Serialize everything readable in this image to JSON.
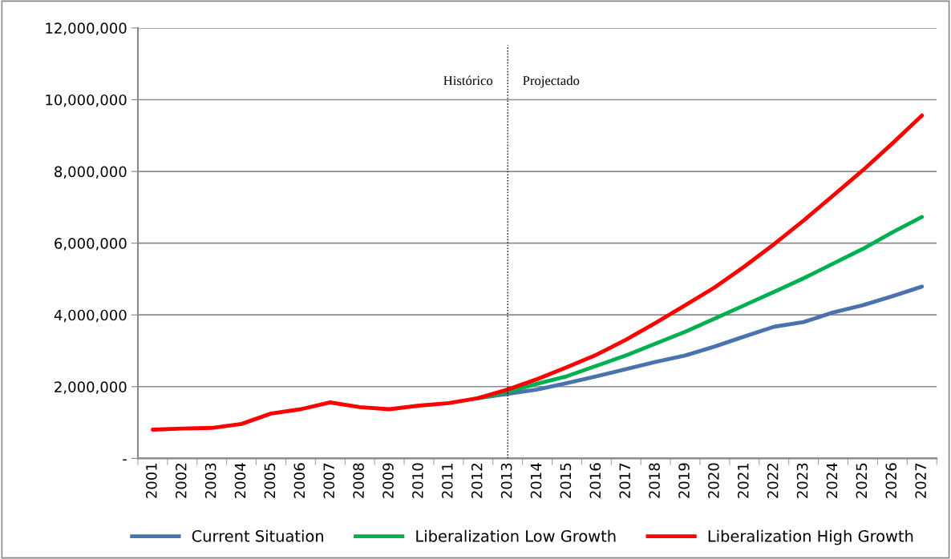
{
  "chart_data": {
    "type": "line",
    "categories": [
      "2001",
      "2002",
      "2003",
      "2004",
      "2005",
      "2006",
      "2007",
      "2008",
      "2009",
      "2010",
      "2011",
      "2012",
      "2013",
      "2014",
      "2015",
      "2016",
      "2017",
      "2018",
      "2019",
      "2020",
      "2021",
      "2022",
      "2023",
      "2024",
      "2025",
      "2026",
      "2027"
    ],
    "series": [
      {
        "name": "Current Situation",
        "color": "#4a73ad",
        "values": [
          null,
          null,
          null,
          null,
          null,
          null,
          null,
          null,
          null,
          null,
          null,
          1680000.0,
          1800000.0,
          1920000.0,
          2100000.0,
          2290000.0,
          2490000.0,
          2690000.0,
          2870000.0,
          3120000.0,
          3400000.0,
          3670000.0,
          3800000.0,
          4070000.0,
          4270000.0,
          4520000.0,
          4790000.0
        ]
      },
      {
        "name": "Liberalization Low Growth",
        "color": "#00b050",
        "values": [
          null,
          null,
          null,
          null,
          null,
          null,
          null,
          null,
          null,
          null,
          null,
          1680000.0,
          1850000.0,
          2080000.0,
          2290000.0,
          2580000.0,
          2870000.0,
          3200000.0,
          3530000.0,
          3900000.0,
          4270000.0,
          4640000.0,
          5020000.0,
          5430000.0,
          5840000.0,
          6300000.0,
          6730000.0
        ]
      },
      {
        "name": "Liberalization High Growth",
        "color": "#ff0000",
        "values": [
          800000.0,
          830000.0,
          850000.0,
          960000.0,
          1250000.0,
          1370000.0,
          1560000.0,
          1430000.0,
          1370000.0,
          1470000.0,
          1540000.0,
          1680000.0,
          1920000.0,
          2210000.0,
          2540000.0,
          2890000.0,
          3310000.0,
          3780000.0,
          4270000.0,
          4770000.0,
          5350000.0,
          5970000.0,
          6630000.0,
          7330000.0,
          8030000.0,
          8780000.0,
          9560000.0
        ]
      }
    ],
    "ylim": [
      0,
      12000000
    ],
    "yticks": [
      {
        "value": 0,
        "label": "-"
      },
      {
        "value": 2000000,
        "label": "2,000,000"
      },
      {
        "value": 4000000,
        "label": "4,000,000"
      },
      {
        "value": 6000000,
        "label": "6,000,000"
      },
      {
        "value": 8000000,
        "label": "8,000,000"
      },
      {
        "value": 10000000,
        "label": "10,000,000"
      },
      {
        "value": 12000000,
        "label": "12,000,000"
      }
    ],
    "ref_lines": [
      {
        "axis": "x",
        "value": "2013",
        "color": "#000000",
        "line_style": "dotted"
      }
    ],
    "annotations": [
      "Histórico",
      "Projectado"
    ],
    "grid": "y",
    "legend": "bottom",
    "marker": "none",
    "line_style": "solid"
  }
}
